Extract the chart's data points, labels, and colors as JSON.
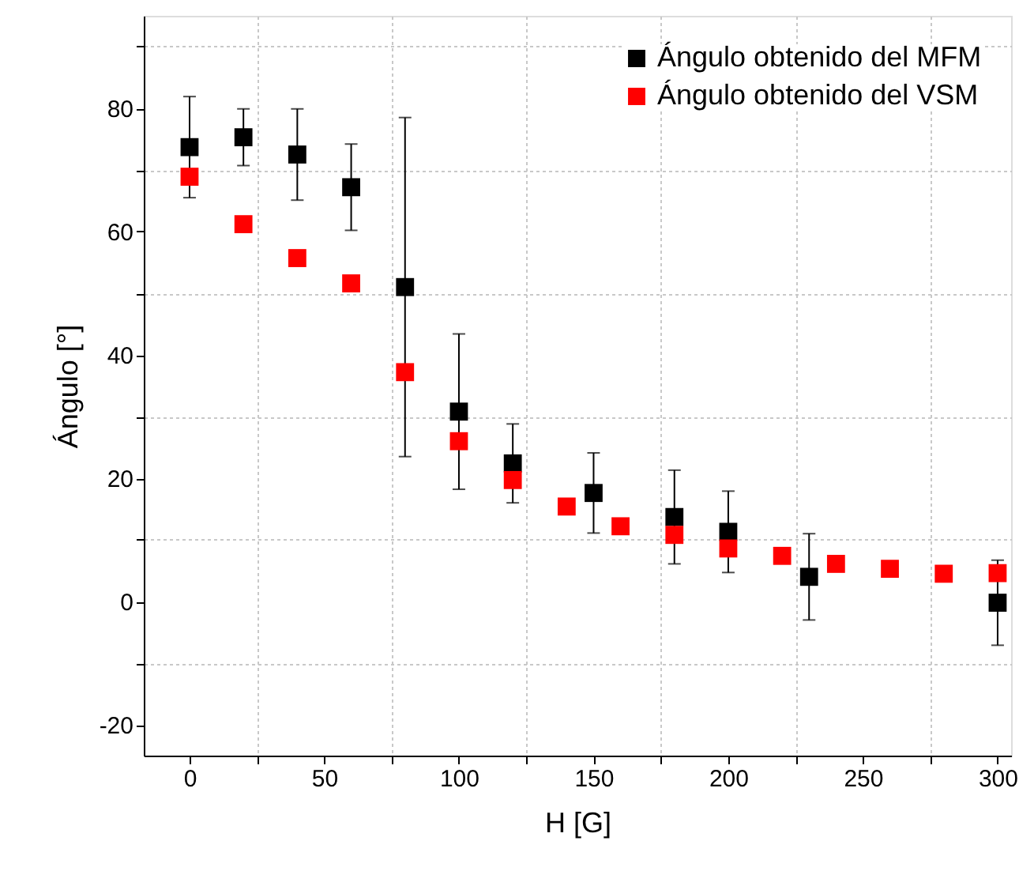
{
  "chart_data": {
    "type": "scatter",
    "xlabel": "H [G]",
    "ylabel": "Ángulo [°]",
    "xlim": [
      -17,
      305
    ],
    "ylim": [
      -25,
      95
    ],
    "xticks": [
      0,
      {
        "value": 25,
        "label": null
      },
      50,
      {
        "value": 75,
        "label": null
      },
      100,
      {
        "value": 125,
        "label": null
      },
      150,
      {
        "value": 175,
        "label": null
      },
      200,
      {
        "value": 225,
        "label": null
      },
      250,
      {
        "value": 275,
        "label": null
      },
      300
    ],
    "yticks": [
      {
        "value": -10,
        "label": null
      },
      -20,
      0,
      {
        "value": 10,
        "label": null
      },
      20,
      {
        "value": 30,
        "label": null
      },
      40,
      {
        "value": 50,
        "label": null
      },
      60,
      {
        "value": 70,
        "label": null
      },
      80,
      {
        "value": 90,
        "label": null
      }
    ],
    "grid": true,
    "legend": "top right",
    "marker": "square",
    "series": [
      {
        "name": "Ángulo obtenido del MFM",
        "color": "#000000",
        "x": [
          0,
          20,
          40,
          60,
          80,
          100,
          120,
          150,
          180,
          200,
          230,
          300
        ],
        "values": [
          73.7,
          75.3,
          72.5,
          67.2,
          51.0,
          30.8,
          22.4,
          17.6,
          13.7,
          11.3,
          4.0,
          -0.2
        ],
        "errors": [
          8.2,
          4.6,
          7.4,
          7.0,
          27.5,
          12.6,
          6.4,
          6.5,
          7.6,
          6.6,
          7.0,
          6.9
        ]
      },
      {
        "name": "Ángulo obtenido del VSM",
        "color": "#ff0000",
        "x": [
          0,
          20,
          40,
          60,
          80,
          100,
          120,
          140,
          160,
          180,
          200,
          220,
          240,
          260,
          280,
          300
        ],
        "values": [
          68.9,
          61.2,
          55.7,
          51.6,
          37.2,
          26.0,
          19.7,
          15.4,
          12.2,
          10.8,
          8.6,
          7.4,
          6.1,
          5.3,
          4.5,
          4.6
        ]
      }
    ]
  }
}
